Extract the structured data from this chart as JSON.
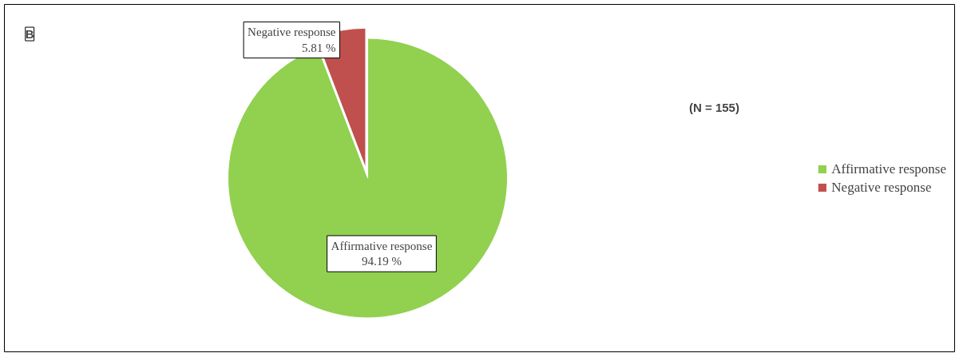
{
  "chart_data": {
    "type": "pie",
    "categories": [
      "Affirmative response",
      "Negative response"
    ],
    "values": [
      94.19,
      5.81
    ],
    "colors": [
      "#92d050",
      "#c0504d"
    ],
    "value_labels": [
      "94.19 %",
      "5.81 %"
    ],
    "legend": "right",
    "annotations": [
      "B",
      "(N  = 155)"
    ]
  }
}
